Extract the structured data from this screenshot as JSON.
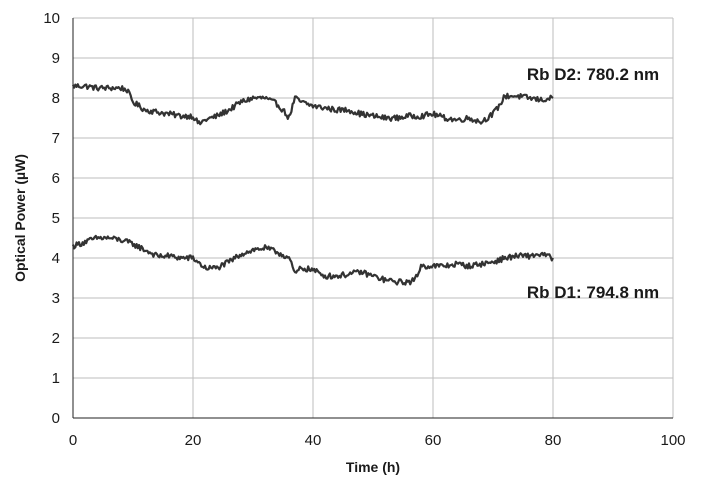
{
  "chart_data": {
    "type": "line",
    "title": "",
    "xlabel": "Time (h)",
    "ylabel": "Optical Power (µW)",
    "xlim": [
      0,
      100
    ],
    "ylim": [
      0,
      10
    ],
    "x_ticks": [
      "0",
      "20",
      "40",
      "60",
      "80",
      "100"
    ],
    "y_ticks": [
      "0",
      "1",
      "2",
      "3",
      "4",
      "5",
      "6",
      "7",
      "8",
      "9",
      "10"
    ],
    "grid": true,
    "line_color": "#333333",
    "grid_color": "#bdbdbd",
    "series": [
      {
        "name": "Rb D2: 780.2 nm",
        "x": [
          0,
          2,
          4,
          6,
          8,
          9,
          10,
          12,
          14,
          16,
          18,
          20,
          21,
          22,
          24,
          26,
          28,
          30,
          32,
          34,
          35,
          36,
          37,
          38,
          40,
          42,
          44,
          46,
          48,
          50,
          52,
          54,
          56,
          58,
          60,
          62,
          64,
          66,
          68,
          70,
          71,
          72,
          74,
          76,
          78,
          80
        ],
        "y": [
          8.3,
          8.3,
          8.25,
          8.25,
          8.25,
          8.2,
          7.9,
          7.7,
          7.65,
          7.6,
          7.55,
          7.55,
          7.35,
          7.45,
          7.55,
          7.7,
          7.9,
          8.0,
          8.0,
          7.85,
          7.7,
          7.5,
          8.0,
          7.9,
          7.8,
          7.75,
          7.7,
          7.7,
          7.6,
          7.55,
          7.5,
          7.5,
          7.55,
          7.55,
          7.6,
          7.5,
          7.45,
          7.5,
          7.4,
          7.6,
          7.8,
          8.05,
          8.05,
          8.0,
          7.95,
          8.0
        ],
        "label_position": "above line end"
      },
      {
        "name": "Rb D1: 794.8 nm",
        "x": [
          0,
          2,
          4,
          6,
          8,
          10,
          12,
          14,
          16,
          18,
          20,
          22,
          24,
          26,
          28,
          30,
          32,
          34,
          36,
          37,
          38,
          40,
          42,
          44,
          46,
          48,
          50,
          52,
          54,
          56,
          57,
          58,
          60,
          62,
          64,
          66,
          68,
          70,
          72,
          74,
          76,
          78,
          80
        ],
        "y": [
          4.3,
          4.4,
          4.5,
          4.5,
          4.45,
          4.35,
          4.2,
          4.05,
          4.05,
          4.0,
          4.0,
          3.75,
          3.75,
          3.9,
          4.1,
          4.2,
          4.25,
          4.15,
          4.0,
          3.6,
          3.75,
          3.7,
          3.55,
          3.55,
          3.6,
          3.65,
          3.55,
          3.45,
          3.4,
          3.4,
          3.45,
          3.8,
          3.8,
          3.8,
          3.85,
          3.8,
          3.85,
          3.9,
          4.0,
          4.05,
          4.05,
          4.1,
          4.0
        ],
        "label_position": "below line end"
      }
    ]
  }
}
